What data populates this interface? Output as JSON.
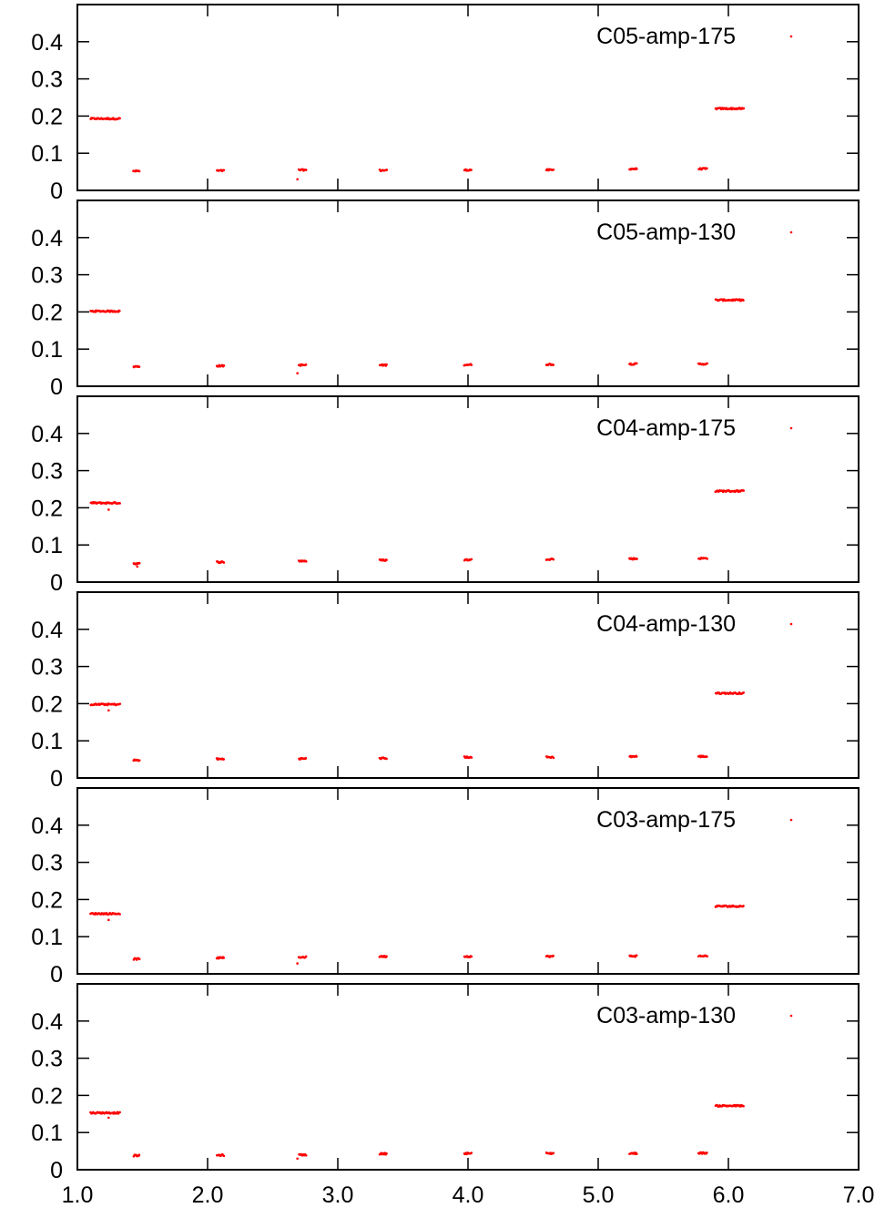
{
  "colors": {
    "points": "#ff0000",
    "axes": "#000000",
    "background": "#ffffff"
  },
  "chart_data": [
    {
      "type": "scatter",
      "legend": "C05-amp-175",
      "legend_position": "top-right",
      "xlim": [
        1.0,
        7.0
      ],
      "ylim": [
        0,
        0.5
      ],
      "yticks": [
        "0",
        "0.1",
        "0.2",
        "0.3",
        "0.4"
      ],
      "clusters": [
        {
          "x_range": [
            1.1,
            1.33
          ],
          "y": 0.193
        },
        {
          "x_range": [
            1.43,
            1.48
          ],
          "y": 0.052
        },
        {
          "x_range": [
            2.07,
            2.13
          ],
          "y": 0.053
        },
        {
          "x_range": [
            2.7,
            2.76
          ],
          "y": 0.055
        },
        {
          "x_range": [
            3.32,
            3.38
          ],
          "y": 0.054
        },
        {
          "x_range": [
            3.97,
            4.03
          ],
          "y": 0.055
        },
        {
          "x_range": [
            4.6,
            4.66
          ],
          "y": 0.055
        },
        {
          "x_range": [
            5.24,
            5.3
          ],
          "y": 0.058
        },
        {
          "x_range": [
            5.77,
            5.84
          ],
          "y": 0.058
        },
        {
          "x_range": [
            5.9,
            6.12
          ],
          "y": 0.22
        }
      ],
      "outliers": [
        {
          "x": 2.69,
          "y": 0.03
        }
      ]
    },
    {
      "type": "scatter",
      "legend": "C05-amp-130",
      "legend_position": "top-right",
      "xlim": [
        1.0,
        7.0
      ],
      "ylim": [
        0,
        0.5
      ],
      "yticks": [
        "0",
        "0.1",
        "0.2",
        "0.3",
        "0.4"
      ],
      "clusters": [
        {
          "x_range": [
            1.1,
            1.33
          ],
          "y": 0.202
        },
        {
          "x_range": [
            1.43,
            1.48
          ],
          "y": 0.053
        },
        {
          "x_range": [
            2.07,
            2.13
          ],
          "y": 0.055
        },
        {
          "x_range": [
            2.7,
            2.76
          ],
          "y": 0.057
        },
        {
          "x_range": [
            3.32,
            3.38
          ],
          "y": 0.057
        },
        {
          "x_range": [
            3.97,
            4.03
          ],
          "y": 0.058
        },
        {
          "x_range": [
            4.6,
            4.66
          ],
          "y": 0.059
        },
        {
          "x_range": [
            5.24,
            5.3
          ],
          "y": 0.06
        },
        {
          "x_range": [
            5.77,
            5.84
          ],
          "y": 0.06
        },
        {
          "x_range": [
            5.9,
            6.12
          ],
          "y": 0.232
        }
      ],
      "outliers": [
        {
          "x": 2.69,
          "y": 0.035
        }
      ]
    },
    {
      "type": "scatter",
      "legend": "C04-amp-175",
      "legend_position": "top-right",
      "xlim": [
        1.0,
        7.0
      ],
      "ylim": [
        0,
        0.5
      ],
      "yticks": [
        "0",
        "0.1",
        "0.2",
        "0.3",
        "0.4"
      ],
      "clusters": [
        {
          "x_range": [
            1.1,
            1.33
          ],
          "y": 0.213
        },
        {
          "x_range": [
            1.43,
            1.48
          ],
          "y": 0.05
        },
        {
          "x_range": [
            2.07,
            2.13
          ],
          "y": 0.054
        },
        {
          "x_range": [
            2.7,
            2.76
          ],
          "y": 0.057
        },
        {
          "x_range": [
            3.32,
            3.38
          ],
          "y": 0.059
        },
        {
          "x_range": [
            3.97,
            4.03
          ],
          "y": 0.06
        },
        {
          "x_range": [
            4.6,
            4.66
          ],
          "y": 0.062
        },
        {
          "x_range": [
            5.24,
            5.3
          ],
          "y": 0.063
        },
        {
          "x_range": [
            5.77,
            5.84
          ],
          "y": 0.064
        },
        {
          "x_range": [
            5.9,
            6.12
          ],
          "y": 0.245
        }
      ],
      "outliers": [
        {
          "x": 1.24,
          "y": 0.195
        },
        {
          "x": 1.46,
          "y": 0.042
        }
      ]
    },
    {
      "type": "scatter",
      "legend": "C04-amp-130",
      "legend_position": "top-right",
      "xlim": [
        1.0,
        7.0
      ],
      "ylim": [
        0,
        0.5
      ],
      "yticks": [
        "0",
        "0.1",
        "0.2",
        "0.3",
        "0.4"
      ],
      "clusters": [
        {
          "x_range": [
            1.1,
            1.33
          ],
          "y": 0.198
        },
        {
          "x_range": [
            1.43,
            1.48
          ],
          "y": 0.048
        },
        {
          "x_range": [
            2.07,
            2.13
          ],
          "y": 0.051
        },
        {
          "x_range": [
            2.7,
            2.76
          ],
          "y": 0.052
        },
        {
          "x_range": [
            3.32,
            3.38
          ],
          "y": 0.053
        },
        {
          "x_range": [
            3.97,
            4.03
          ],
          "y": 0.056
        },
        {
          "x_range": [
            4.6,
            4.66
          ],
          "y": 0.056
        },
        {
          "x_range": [
            5.24,
            5.3
          ],
          "y": 0.058
        },
        {
          "x_range": [
            5.77,
            5.84
          ],
          "y": 0.058
        },
        {
          "x_range": [
            5.9,
            6.12
          ],
          "y": 0.228
        }
      ],
      "outliers": [
        {
          "x": 1.24,
          "y": 0.182
        }
      ]
    },
    {
      "type": "scatter",
      "legend": "C03-amp-175",
      "legend_position": "top-right",
      "xlim": [
        1.0,
        7.0
      ],
      "ylim": [
        0,
        0.5
      ],
      "yticks": [
        "0",
        "0.1",
        "0.2",
        "0.3",
        "0.4"
      ],
      "clusters": [
        {
          "x_range": [
            1.1,
            1.33
          ],
          "y": 0.162
        },
        {
          "x_range": [
            1.43,
            1.48
          ],
          "y": 0.04
        },
        {
          "x_range": [
            2.07,
            2.13
          ],
          "y": 0.043
        },
        {
          "x_range": [
            2.7,
            2.76
          ],
          "y": 0.045
        },
        {
          "x_range": [
            3.32,
            3.38
          ],
          "y": 0.047
        },
        {
          "x_range": [
            3.97,
            4.03
          ],
          "y": 0.047
        },
        {
          "x_range": [
            4.6,
            4.66
          ],
          "y": 0.047
        },
        {
          "x_range": [
            5.24,
            5.3
          ],
          "y": 0.048
        },
        {
          "x_range": [
            5.77,
            5.84
          ],
          "y": 0.048
        },
        {
          "x_range": [
            5.9,
            6.12
          ],
          "y": 0.182
        }
      ],
      "outliers": [
        {
          "x": 1.24,
          "y": 0.145
        },
        {
          "x": 2.69,
          "y": 0.028
        }
      ]
    },
    {
      "type": "scatter",
      "legend": "C03-amp-130",
      "legend_position": "top-right",
      "xlim": [
        1.0,
        7.0
      ],
      "ylim": [
        0,
        0.5
      ],
      "yticks": [
        "0",
        "0.1",
        "0.2",
        "0.3",
        "0.4"
      ],
      "xticks": [
        "1.0",
        "2.0",
        "3.0",
        "4.0",
        "5.0",
        "6.0",
        "7.0"
      ],
      "clusters": [
        {
          "x_range": [
            1.1,
            1.33
          ],
          "y": 0.153
        },
        {
          "x_range": [
            1.43,
            1.48
          ],
          "y": 0.038
        },
        {
          "x_range": [
            2.07,
            2.13
          ],
          "y": 0.039
        },
        {
          "x_range": [
            2.7,
            2.76
          ],
          "y": 0.04
        },
        {
          "x_range": [
            3.32,
            3.38
          ],
          "y": 0.043
        },
        {
          "x_range": [
            3.97,
            4.03
          ],
          "y": 0.044
        },
        {
          "x_range": [
            4.6,
            4.66
          ],
          "y": 0.044
        },
        {
          "x_range": [
            5.24,
            5.3
          ],
          "y": 0.044
        },
        {
          "x_range": [
            5.77,
            5.84
          ],
          "y": 0.045
        },
        {
          "x_range": [
            5.9,
            6.12
          ],
          "y": 0.172
        }
      ],
      "outliers": [
        {
          "x": 1.24,
          "y": 0.14
        },
        {
          "x": 2.69,
          "y": 0.03
        }
      ]
    }
  ]
}
